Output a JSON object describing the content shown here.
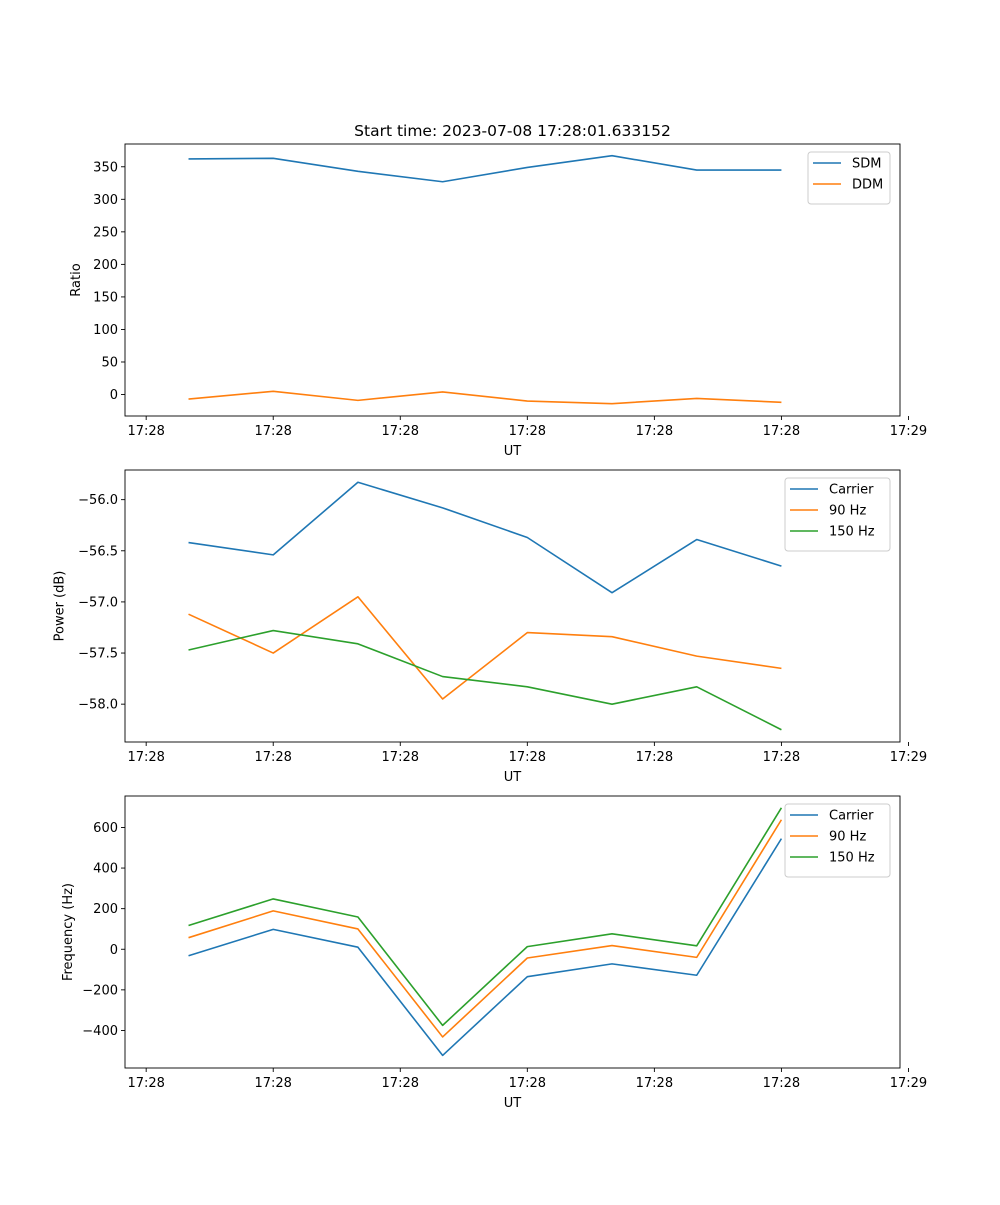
{
  "title": "Start time: 2023-07-08 17:28:01.633152",
  "chart_data": [
    {
      "type": "line",
      "xlabel": "UT",
      "ylabel": "Ratio",
      "x": [
        0,
        1,
        2,
        3,
        4,
        5,
        6,
        7
      ],
      "xlim": [
        -0.75,
        8.4
      ],
      "xticks": [
        -0.5,
        1,
        2.5,
        4,
        5.5,
        7,
        8.5
      ],
      "xticklabels": [
        "17:28",
        "17:28",
        "17:28",
        "17:28",
        "17:28",
        "17:28",
        "17:29"
      ],
      "ylim": [
        -33,
        385
      ],
      "yticks": [
        0,
        50,
        100,
        150,
        200,
        250,
        300,
        350
      ],
      "yticklabels": [
        "0",
        "50",
        "100",
        "150",
        "200",
        "250",
        "300",
        "350"
      ],
      "legend": "top-right",
      "series": [
        {
          "name": "SDM",
          "color": "#1f77b4",
          "values": [
            362,
            363,
            343,
            327,
            349,
            367,
            345,
            345
          ]
        },
        {
          "name": "DDM",
          "color": "#ff7f0e",
          "values": [
            -7,
            5,
            -9,
            4,
            -10,
            -14,
            -6,
            -12
          ]
        }
      ]
    },
    {
      "type": "line",
      "xlabel": "UT",
      "ylabel": "Power (dB)",
      "x": [
        0,
        1,
        2,
        3,
        4,
        5,
        6,
        7
      ],
      "xlim": [
        -0.75,
        8.4
      ],
      "xticks": [
        -0.5,
        1,
        2.5,
        4,
        5.5,
        7,
        8.5
      ],
      "xticklabels": [
        "17:28",
        "17:28",
        "17:28",
        "17:28",
        "17:28",
        "17:28",
        "17:29"
      ],
      "ylim": [
        -58.37,
        -55.71
      ],
      "yticks": [
        -58.0,
        -57.5,
        -57.0,
        -56.5,
        -56.0
      ],
      "yticklabels": [
        "−58.0",
        "−57.5",
        "−57.0",
        "−56.5",
        "−56.0"
      ],
      "legend": "top-right",
      "series": [
        {
          "name": "Carrier",
          "color": "#1f77b4",
          "values": [
            -56.42,
            -56.54,
            -55.83,
            -56.08,
            -56.37,
            -56.91,
            -56.39,
            -56.65
          ]
        },
        {
          "name": "90 Hz",
          "color": "#ff7f0e",
          "values": [
            -57.12,
            -57.5,
            -56.95,
            -57.95,
            -57.3,
            -57.34,
            -57.53,
            -57.65
          ]
        },
        {
          "name": "150 Hz",
          "color": "#2ca02c",
          "values": [
            -57.47,
            -57.28,
            -57.41,
            -57.73,
            -57.83,
            -58.0,
            -57.83,
            -58.25
          ]
        }
      ]
    },
    {
      "type": "line",
      "xlabel": "UT",
      "ylabel": "Frequency (Hz)",
      "x": [
        0,
        1,
        2,
        3,
        4,
        5,
        6,
        7
      ],
      "xlim": [
        -0.75,
        8.4
      ],
      "xticks": [
        -0.5,
        1,
        2.5,
        4,
        5.5,
        7,
        8.5
      ],
      "xticklabels": [
        "17:28",
        "17:28",
        "17:28",
        "17:28",
        "17:28",
        "17:28",
        "17:29"
      ],
      "ylim": [
        -585,
        755
      ],
      "yticks": [
        -400,
        -200,
        0,
        200,
        400,
        600
      ],
      "yticklabels": [
        "−400",
        "−200",
        "0",
        "200",
        "400",
        "600"
      ],
      "legend": "top-right",
      "series": [
        {
          "name": "Carrier",
          "color": "#1f77b4",
          "values": [
            -32,
            98,
            10,
            -523,
            -135,
            -72,
            -128,
            545
          ]
        },
        {
          "name": "90 Hz",
          "color": "#ff7f0e",
          "values": [
            57,
            189,
            100,
            -432,
            -43,
            18,
            -40,
            638
          ]
        },
        {
          "name": "150 Hz",
          "color": "#2ca02c",
          "values": [
            117,
            248,
            159,
            -375,
            13,
            76,
            17,
            697
          ]
        }
      ]
    }
  ]
}
